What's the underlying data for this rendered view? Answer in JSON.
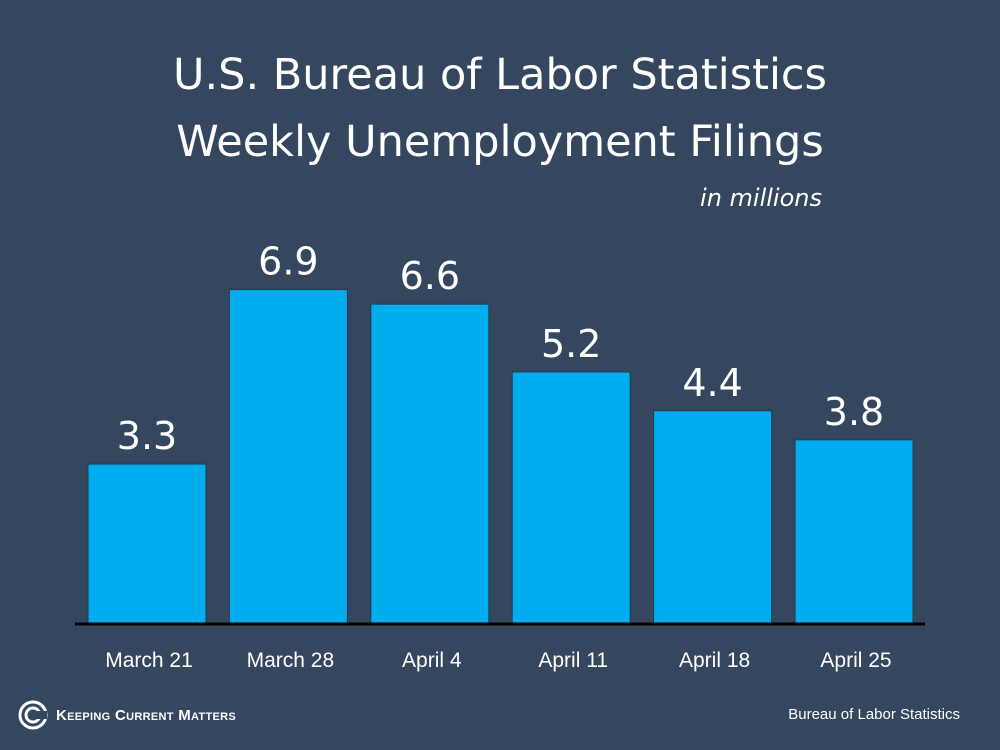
{
  "chart_data": {
    "type": "bar",
    "title": "U.S. Bureau of Labor Statistics",
    "subtitle": "Weekly Unemployment Filings",
    "unit_label": "in millions",
    "categories": [
      "March 21",
      "March 28",
      "April 4",
      "April 11",
      "April 18",
      "April 25"
    ],
    "values": [
      3.3,
      6.9,
      6.6,
      5.2,
      4.4,
      3.8
    ],
    "data_labels": [
      "3.3",
      "6.9",
      "6.6",
      "5.2",
      "4.4",
      "3.8"
    ],
    "ylim": [
      0,
      7.8
    ],
    "grid": false,
    "bar_color": "#00adef",
    "axis_color": "#000000"
  },
  "footer": {
    "logo_text": "Keeping Current Matters",
    "source": "Bureau of Labor Statistics"
  },
  "colors": {
    "background": "#34475f",
    "text": "#ffffff"
  }
}
